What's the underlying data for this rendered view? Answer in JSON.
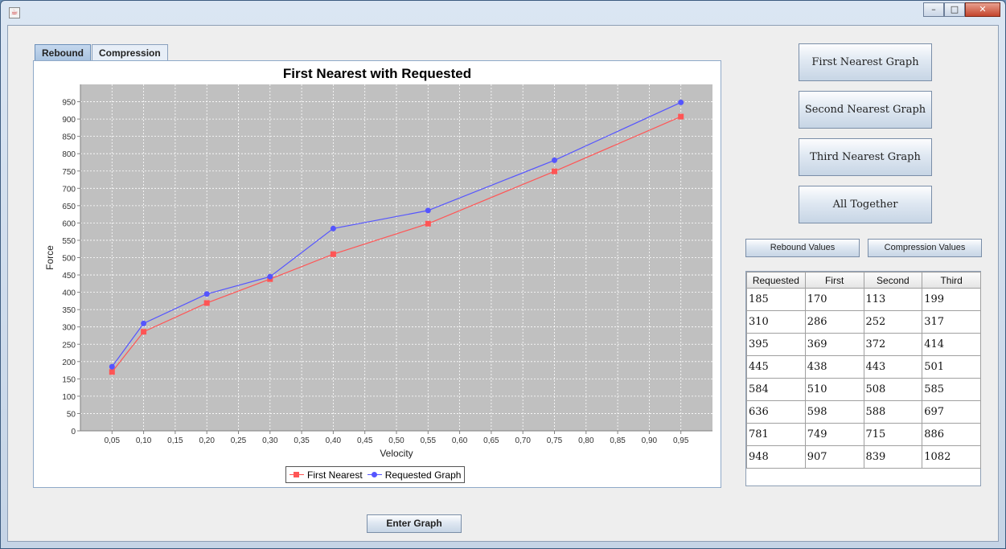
{
  "window": {
    "app_icon": "java-icon",
    "controls": {
      "minimize": "–",
      "maximize": "□",
      "close": "✕"
    }
  },
  "tabs": [
    {
      "label": "Rebound",
      "active": true
    },
    {
      "label": "Compression",
      "active": false
    }
  ],
  "buttons": {
    "first_nearest": "First Nearest Graph",
    "second_nearest": "Second Nearest Graph",
    "third_nearest": "Third Nearest Graph",
    "all_together": "All Together",
    "rebound_values": "Rebound Values",
    "compression_values": "Compression Values",
    "enter_graph": "Enter Graph"
  },
  "table": {
    "headers": [
      "Requested",
      "First",
      "Second",
      "Third"
    ],
    "rows": [
      [
        "185",
        "170",
        "113",
        "199"
      ],
      [
        "310",
        "286",
        "252",
        "317"
      ],
      [
        "395",
        "369",
        "372",
        "414"
      ],
      [
        "445",
        "438",
        "443",
        "501"
      ],
      [
        "584",
        "510",
        "508",
        "585"
      ],
      [
        "636",
        "598",
        "588",
        "697"
      ],
      [
        "781",
        "749",
        "715",
        "886"
      ],
      [
        "948",
        "907",
        "839",
        "1082"
      ]
    ]
  },
  "chart_data": {
    "type": "line",
    "title": "First Nearest with Requested",
    "xlabel": "Velocity",
    "ylabel": "Force",
    "x": [
      0.05,
      0.1,
      0.2,
      0.3,
      0.4,
      0.55,
      0.75,
      0.95
    ],
    "xlim": [
      0.0,
      1.0
    ],
    "ylim": [
      0,
      1000
    ],
    "x_ticks": [
      "0,05",
      "0,10",
      "0,15",
      "0,20",
      "0,25",
      "0,30",
      "0,35",
      "0,40",
      "0,45",
      "0,50",
      "0,55",
      "0,60",
      "0,65",
      "0,70",
      "0,75",
      "0,80",
      "0,85",
      "0,90",
      "0,95"
    ],
    "y_ticks": [
      "0",
      "50",
      "100",
      "150",
      "200",
      "250",
      "300",
      "350",
      "400",
      "450",
      "500",
      "550",
      "600",
      "650",
      "700",
      "750",
      "800",
      "850",
      "900",
      "950"
    ],
    "grid": true,
    "plot_background": "#c0c0c0",
    "legend_position": "bottom",
    "series": [
      {
        "name": "First Nearest",
        "color": "#ff5555",
        "marker": "square",
        "values": [
          170,
          286,
          369,
          438,
          510,
          598,
          749,
          907
        ]
      },
      {
        "name": "Requested Graph",
        "color": "#5555ff",
        "marker": "circle",
        "values": [
          185,
          310,
          395,
          445,
          584,
          636,
          781,
          948
        ]
      }
    ]
  }
}
